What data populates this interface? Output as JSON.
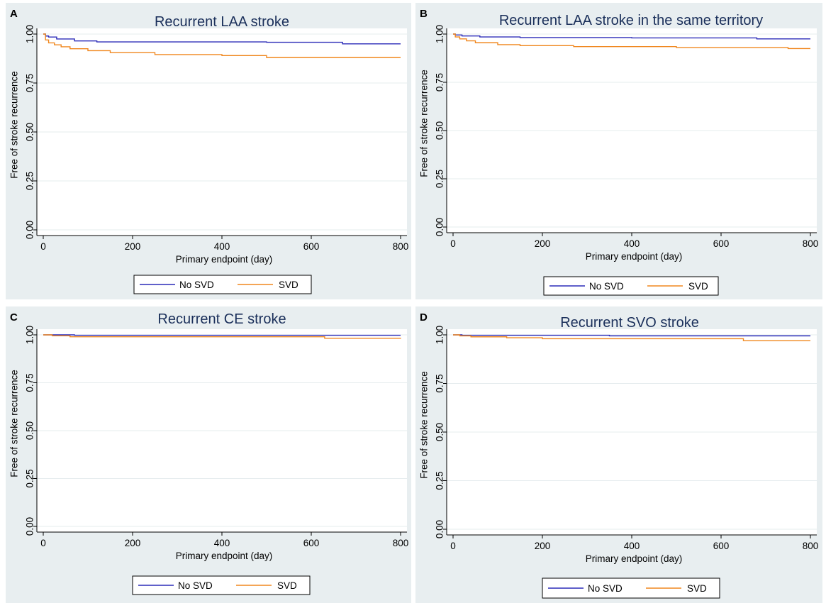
{
  "chart_data": [
    {
      "type": "line",
      "panel": "A",
      "title": "Recurrent LAA stroke",
      "xlabel": "Primary endpoint (day)",
      "ylabel": "Free of stroke recurrence",
      "xlim": [
        0,
        800
      ],
      "ylim": [
        0,
        1
      ],
      "xticks": [
        "0",
        "200",
        "400",
        "600",
        "800"
      ],
      "yticks": [
        "0.00",
        "0.25",
        "0.50",
        "0.75",
        "1.00"
      ],
      "legend": "bottom",
      "series": [
        {
          "name": "No SVD",
          "color": "#2b2bb8",
          "x": [
            0,
            5,
            12,
            30,
            70,
            120,
            300,
            500,
            670,
            800
          ],
          "y": [
            1.0,
            0.99,
            0.985,
            0.975,
            0.965,
            0.96,
            0.96,
            0.958,
            0.95,
            0.95
          ]
        },
        {
          "name": "SVD",
          "color": "#f0871e",
          "x": [
            0,
            5,
            12,
            25,
            40,
            60,
            100,
            150,
            250,
            400,
            500,
            800
          ],
          "y": [
            1.0,
            0.97,
            0.955,
            0.945,
            0.935,
            0.925,
            0.915,
            0.905,
            0.895,
            0.89,
            0.88,
            0.88
          ]
        }
      ]
    },
    {
      "type": "line",
      "panel": "B",
      "title": "Recurrent LAA stroke in the same territory",
      "xlabel": "Primary endpoint (day)",
      "ylabel": "Free of stroke recurrence",
      "xlim": [
        0,
        800
      ],
      "ylim": [
        0,
        1
      ],
      "xticks": [
        "0",
        "200",
        "400",
        "600",
        "800"
      ],
      "yticks": [
        "0.00",
        "0.25",
        "0.50",
        "0.75",
        "1.00"
      ],
      "legend": "bottom",
      "series": [
        {
          "name": "No SVD",
          "color": "#2b2bb8",
          "x": [
            0,
            5,
            20,
            60,
            150,
            400,
            620,
            680,
            800
          ],
          "y": [
            1.0,
            0.995,
            0.99,
            0.985,
            0.982,
            0.98,
            0.98,
            0.975,
            0.975
          ]
        },
        {
          "name": "SVD",
          "color": "#f0871e",
          "x": [
            0,
            5,
            15,
            30,
            50,
            100,
            150,
            270,
            500,
            750,
            800
          ],
          "y": [
            1.0,
            0.985,
            0.975,
            0.965,
            0.955,
            0.945,
            0.94,
            0.935,
            0.93,
            0.925,
            0.925
          ]
        }
      ]
    },
    {
      "type": "line",
      "panel": "C",
      "title": "Recurrent CE stroke",
      "xlabel": "Primary endpoint (day)",
      "ylabel": "Free of stroke recurrence",
      "xlim": [
        0,
        800
      ],
      "ylim": [
        0,
        1
      ],
      "xticks": [
        "0",
        "200",
        "400",
        "600",
        "800"
      ],
      "yticks": [
        "0.00",
        "0.25",
        "0.50",
        "0.75",
        "1.00"
      ],
      "legend": "bottom",
      "series": [
        {
          "name": "No SVD",
          "color": "#2b2bb8",
          "x": [
            0,
            70,
            800
          ],
          "y": [
            1.0,
            0.998,
            0.998
          ]
        },
        {
          "name": "SVD",
          "color": "#f0871e",
          "x": [
            0,
            20,
            60,
            600,
            630,
            800
          ],
          "y": [
            1.0,
            0.995,
            0.99,
            0.99,
            0.982,
            0.98
          ]
        }
      ]
    },
    {
      "type": "line",
      "panel": "D",
      "title": "Recurrent SVO stroke",
      "xlabel": "Primary endpoint (day)",
      "ylabel": "Free of stroke recurrence",
      "xlim": [
        0,
        800
      ],
      "ylim": [
        0,
        1
      ],
      "xticks": [
        "0",
        "200",
        "400",
        "600",
        "800"
      ],
      "yticks": [
        "0.00",
        "0.25",
        "0.50",
        "0.75",
        "1.00"
      ],
      "legend": "bottom",
      "series": [
        {
          "name": "No SVD",
          "color": "#2b2bb8",
          "x": [
            0,
            20,
            350,
            800
          ],
          "y": [
            1.0,
            0.998,
            0.995,
            0.995
          ]
        },
        {
          "name": "SVD",
          "color": "#f0871e",
          "x": [
            0,
            15,
            40,
            120,
            200,
            580,
            650,
            800
          ],
          "y": [
            1.0,
            0.995,
            0.99,
            0.985,
            0.98,
            0.98,
            0.97,
            0.97
          ]
        }
      ]
    }
  ]
}
